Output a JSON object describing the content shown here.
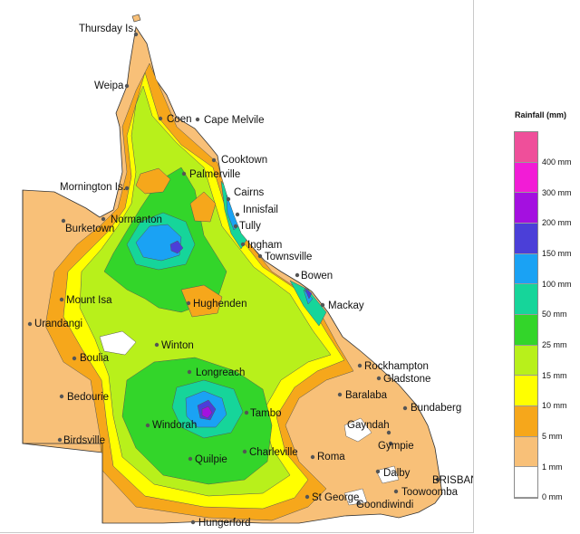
{
  "map": {
    "towns": [
      {
        "name": "Thursday Is.",
        "key": "thursday"
      },
      {
        "name": "Weipa",
        "key": "weipa"
      },
      {
        "name": "Coen",
        "key": "coen"
      },
      {
        "name": "Cape Melvile",
        "key": "capemelvile"
      },
      {
        "name": "Cooktown",
        "key": "cooktown"
      },
      {
        "name": "Palmerville",
        "key": "palmerville"
      },
      {
        "name": "Mornington Is.",
        "key": "mornington"
      },
      {
        "name": "Cairns",
        "key": "cairns"
      },
      {
        "name": "Innisfail",
        "key": "innisfail"
      },
      {
        "name": "Tully",
        "key": "tully"
      },
      {
        "name": "Normanton",
        "key": "normanton"
      },
      {
        "name": "Burketown",
        "key": "burketown"
      },
      {
        "name": "Ingham",
        "key": "ingham"
      },
      {
        "name": "Townsville",
        "key": "townsville"
      },
      {
        "name": "Bowen",
        "key": "bowen"
      },
      {
        "name": "Mackay",
        "key": "mackay"
      },
      {
        "name": "Mount Isa",
        "key": "mountisa"
      },
      {
        "name": "Hughenden",
        "key": "hughenden"
      },
      {
        "name": "Urandangi",
        "key": "urandangi"
      },
      {
        "name": "Winton",
        "key": "winton"
      },
      {
        "name": "Boulia",
        "key": "boulia"
      },
      {
        "name": "Longreach",
        "key": "longreach"
      },
      {
        "name": "Rockhampton",
        "key": "rockhampton"
      },
      {
        "name": "Gladstone",
        "key": "gladstone"
      },
      {
        "name": "Bedourie",
        "key": "bedourie"
      },
      {
        "name": "Baralaba",
        "key": "baralaba"
      },
      {
        "name": "Tambo",
        "key": "tambo"
      },
      {
        "name": "Bundaberg",
        "key": "bundaberg"
      },
      {
        "name": "Windorah",
        "key": "windorah"
      },
      {
        "name": "Gayndah",
        "key": "gayndah"
      },
      {
        "name": "Birdsville",
        "key": "birdsville"
      },
      {
        "name": "Gympie",
        "key": "gympie"
      },
      {
        "name": "Charleville",
        "key": "charleville"
      },
      {
        "name": "Roma",
        "key": "roma"
      },
      {
        "name": "Quilpie",
        "key": "quilpie"
      },
      {
        "name": "Dalby",
        "key": "dalby"
      },
      {
        "name": "BRISBANE",
        "key": "brisbane"
      },
      {
        "name": "Toowoomba",
        "key": "toowoomba"
      },
      {
        "name": "St George",
        "key": "stgeorge"
      },
      {
        "name": "Goondiwindi",
        "key": "goondiwindi"
      },
      {
        "name": "Hungerford",
        "key": "hungerford"
      }
    ]
  },
  "legend": {
    "title": "Rainfall (mm)",
    "classes": [
      {
        "label": "400 mm",
        "color": "#ef4f9a"
      },
      {
        "label": "300 mm",
        "color": "#f21cd6"
      },
      {
        "label": "200 mm",
        "color": "#a410e0"
      },
      {
        "label": "150 mm",
        "color": "#4b3fd8"
      },
      {
        "label": "100 mm",
        "color": "#1aa2f4"
      },
      {
        "label": "50 mm",
        "color": "#16d59a"
      },
      {
        "label": "25 mm",
        "color": "#33d52a"
      },
      {
        "label": "15 mm",
        "color": "#b8f01b"
      },
      {
        "label": "10 mm",
        "color": "#ffff00"
      },
      {
        "label": "5 mm",
        "color": "#f6a71b"
      },
      {
        "label": "1 mm",
        "color": "#f8c078"
      },
      {
        "label": "0 mm",
        "color": "#ffffff"
      }
    ]
  }
}
